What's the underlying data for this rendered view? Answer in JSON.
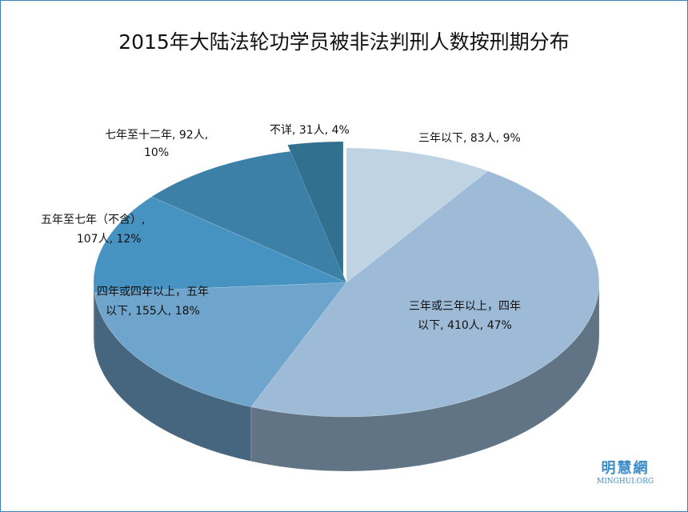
{
  "chart_data": {
    "type": "pie",
    "style": "3d",
    "title": "2015年大陆法轮功学员被非法判刑人数按刑期分布",
    "slices": [
      {
        "label": "三年以下",
        "value": 83,
        "percent": 9,
        "color": "#c0d3e3",
        "text": "三年以下, 83人, 9%"
      },
      {
        "label": "三年或三年以上，四年以下",
        "value": 410,
        "percent": 47,
        "color": "#9dbbd6",
        "text1": "三年或三年以上，四年",
        "text2": "以下, 410人, 47%"
      },
      {
        "label": "四年或四年以上，五年以下",
        "value": 155,
        "percent": 18,
        "color": "#6fa5cc",
        "text1": "四年或四年以上，五年",
        "text2": "以下, 155人, 18%"
      },
      {
        "label": "五年至七年（不含）",
        "value": 107,
        "percent": 12,
        "color": "#4692c0",
        "text1": "五年至七年（不含）,",
        "text2": "107人, 12%"
      },
      {
        "label": "七年至十二年",
        "value": 92,
        "percent": 10,
        "color": "#3c80a8",
        "text1": "七年至十二年, 92人,",
        "text2": "10%"
      },
      {
        "label": "不详",
        "value": 31,
        "percent": 4,
        "color": "#32708f",
        "text": "不详, 31人, 4%",
        "exploded": true
      }
    ],
    "legend": "none"
  },
  "watermark": {
    "cn": "明慧網",
    "en": "MINGHUI.ORG"
  }
}
